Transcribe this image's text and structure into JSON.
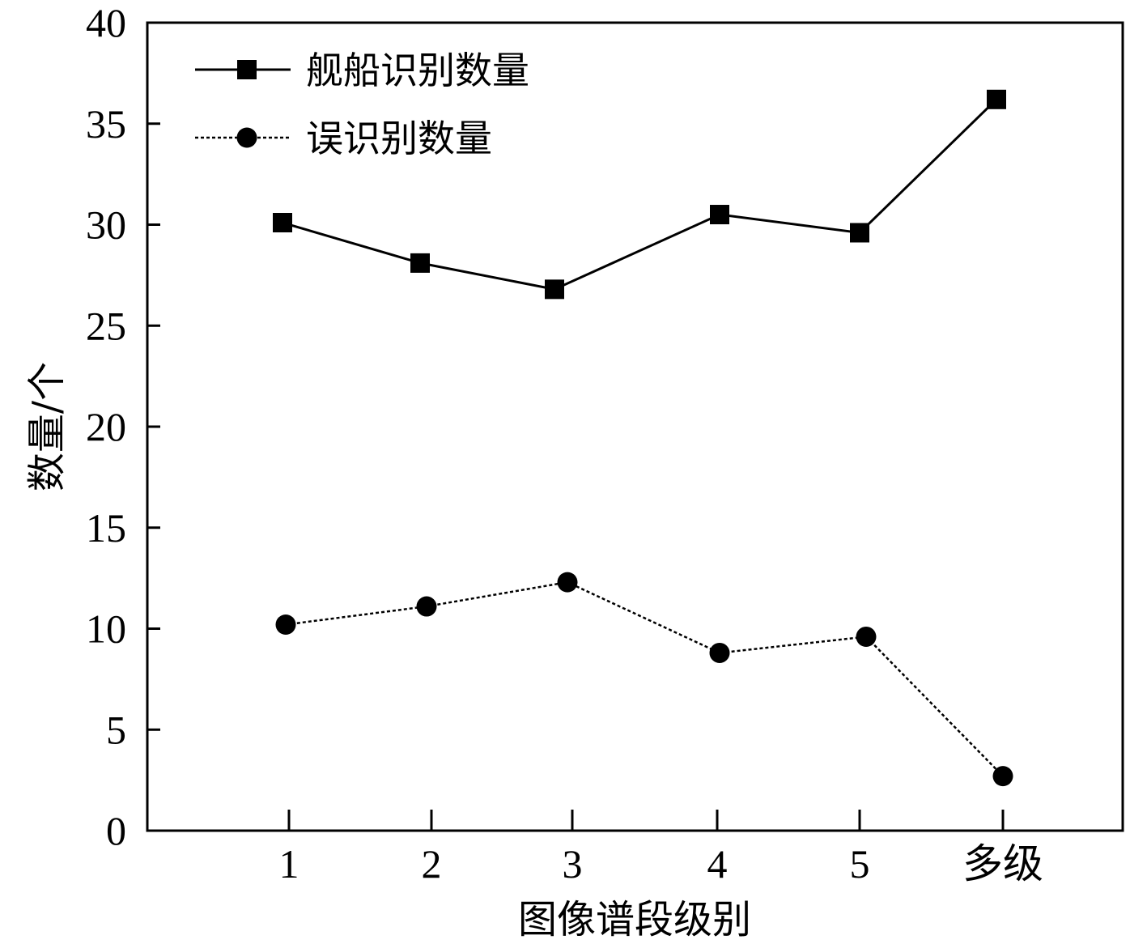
{
  "chart_data": {
    "type": "line",
    "categories": [
      "1",
      "2",
      "3",
      "4",
      "5",
      "多级"
    ],
    "series": [
      {
        "name": "舰船识别数量",
        "values": [
          30.1,
          28.1,
          26.8,
          30.5,
          29.6,
          36.2
        ],
        "line_style": "solid",
        "marker": "square",
        "color": "#000000"
      },
      {
        "name": "误识别数量",
        "values": [
          10.2,
          11.1,
          12.3,
          8.8,
          9.6,
          2.7
        ],
        "line_style": "dotted",
        "marker": "circle",
        "color": "#000000"
      }
    ],
    "xlabel": "图像谱段级别",
    "ylabel": "数量/个",
    "ylim": [
      0,
      40
    ],
    "yticks": [
      0,
      5,
      10,
      15,
      20,
      25,
      30,
      35,
      40
    ],
    "legend_position": "top-left",
    "grid": false
  }
}
